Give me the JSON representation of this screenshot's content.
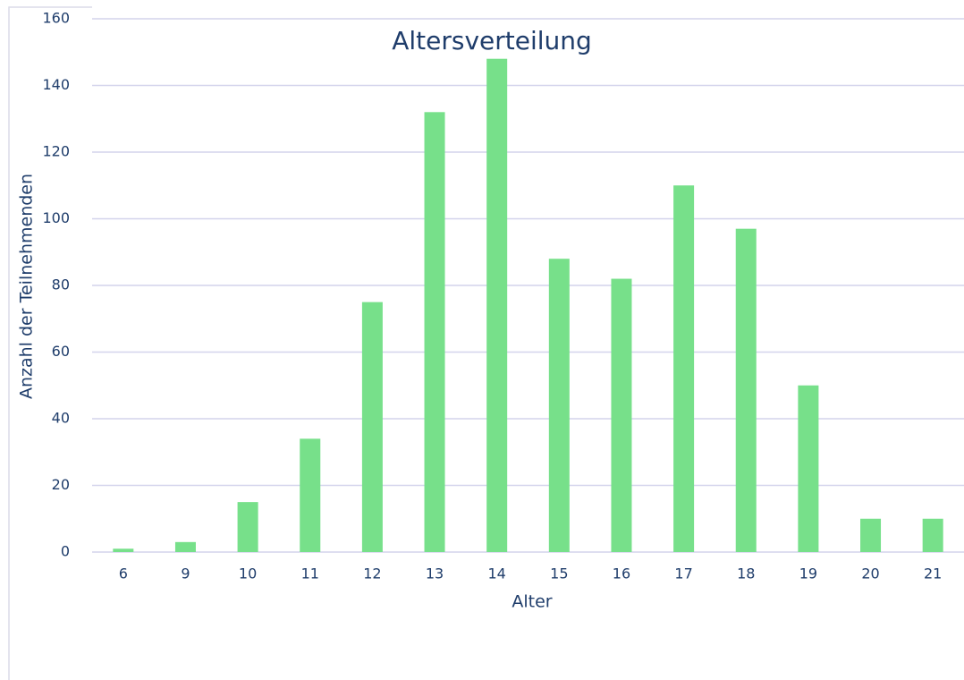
{
  "chart_data": {
    "type": "bar",
    "title": "Altersverteilung",
    "x_label": "Alter",
    "y_label": "Anzahl der Teilnehmenden",
    "categories": [
      "6",
      "9",
      "10",
      "11",
      "12",
      "13",
      "14",
      "15",
      "16",
      "17",
      "18",
      "19",
      "20",
      "21"
    ],
    "values": [
      1,
      3,
      15,
      34,
      75,
      132,
      148,
      88,
      82,
      110,
      97,
      50,
      10,
      10
    ],
    "color": "#77e08a",
    "ylim": [
      0,
      160
    ],
    "yticks": [
      0,
      20,
      40,
      60,
      80,
      100,
      120,
      140,
      160
    ],
    "grid": true
  }
}
